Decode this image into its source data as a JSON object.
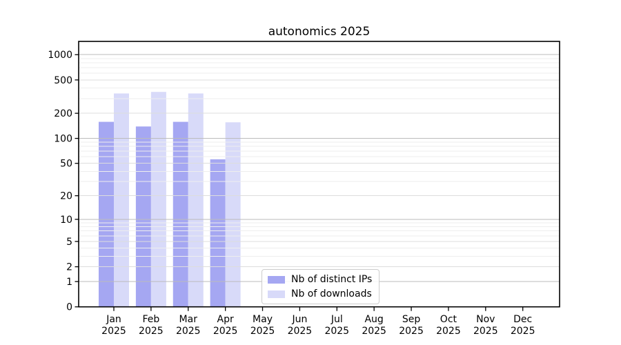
{
  "figure": {
    "title": "autonomics 2025"
  },
  "chart_data": {
    "type": "bar",
    "title": "autonomics 2025",
    "categories": [
      "Jan",
      "Feb",
      "Mar",
      "Apr",
      "May",
      "Jun",
      "Jul",
      "Aug",
      "Sep",
      "Oct",
      "Nov",
      "Dec"
    ],
    "category_year": "2025",
    "series": [
      {
        "name": "Nb of distinct IPs",
        "color": "#a5a7f2",
        "values": [
          158,
          139,
          158,
          56,
          0,
          0,
          0,
          0,
          0,
          0,
          0,
          0
        ]
      },
      {
        "name": "Nb of downloads",
        "color": "#d8daf9",
        "values": [
          345,
          360,
          345,
          156,
          0,
          0,
          0,
          0,
          0,
          0,
          0,
          0
        ]
      }
    ],
    "xlabel": "",
    "ylabel": "",
    "y_scale": "log1p",
    "y_ticks": [
      0,
      1,
      2,
      5,
      10,
      20,
      50,
      100,
      200,
      500,
      1000
    ],
    "ylim": [
      0,
      1440
    ],
    "grid": true,
    "grid_colors": {
      "decade": "#bbbbbb",
      "labeled": "#dddddd",
      "minor": "#eeeeee"
    },
    "legend_position": "lower center, inside plot",
    "axis_color": "#000000"
  }
}
